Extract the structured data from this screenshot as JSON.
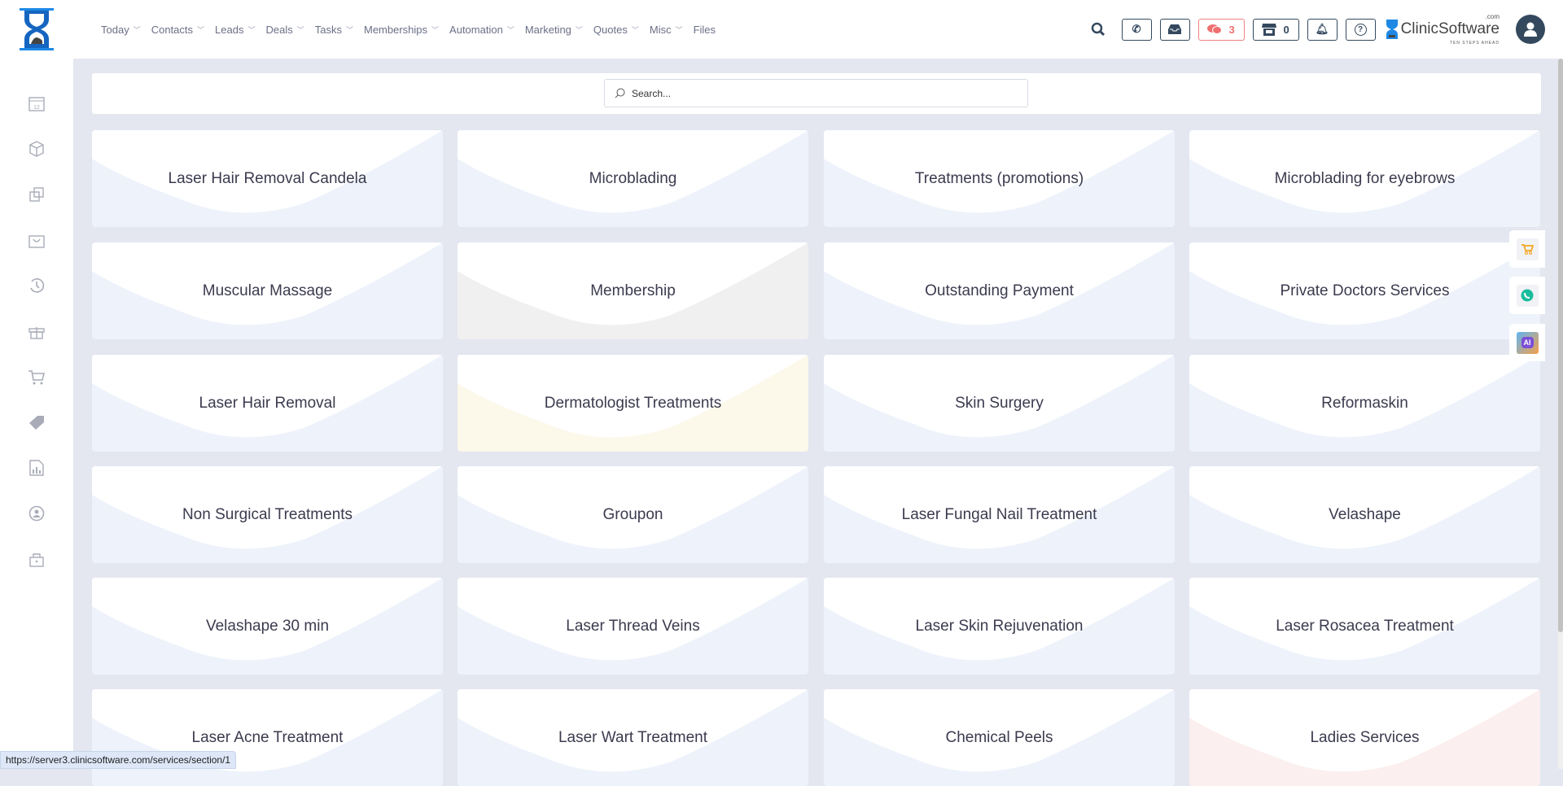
{
  "header": {
    "nav": [
      "Today",
      "Contacts",
      "Leads",
      "Deals",
      "Tasks",
      "Memberships",
      "Automation",
      "Marketing",
      "Quotes",
      "Misc",
      "Files"
    ],
    "messages_count": "3",
    "store_count": "0",
    "brand_name": "ClinicSoftware",
    "brand_suffix": ".com",
    "brand_tagline": "TEN STEPS AHEAD"
  },
  "sidebar": [
    "calendar-icon",
    "box-icon",
    "copy-icon",
    "basket-icon",
    "history-icon",
    "gift-icon",
    "cart-icon",
    "tag-icon",
    "report-icon",
    "user-circle-icon",
    "lock-icon"
  ],
  "search": {
    "placeholder": "Search..."
  },
  "cards": [
    {
      "label": "Laser Hair Removal Candela",
      "color": "#eef3fb"
    },
    {
      "label": "Microblading",
      "color": "#eef3fb"
    },
    {
      "label": "Treatments (promotions)",
      "color": "#eef3fb"
    },
    {
      "label": "Microblading for eyebrows",
      "color": "#eef3fb"
    },
    {
      "label": "Muscular Massage",
      "color": "#eef3fb"
    },
    {
      "label": "Membership",
      "color": "#f0f0f1"
    },
    {
      "label": "Outstanding Payment",
      "color": "#eef3fb"
    },
    {
      "label": "Private Doctors Services",
      "color": "#eef3fb"
    },
    {
      "label": "Laser Hair Removal",
      "color": "#eef3fb"
    },
    {
      "label": "Dermatologist Treatments",
      "color": "#fcf8ea"
    },
    {
      "label": "Skin Surgery",
      "color": "#eef3fb"
    },
    {
      "label": "Reformaskin",
      "color": "#eef3fb"
    },
    {
      "label": "Non Surgical Treatments",
      "color": "#eef3fb"
    },
    {
      "label": "Groupon",
      "color": "#eef3fb"
    },
    {
      "label": "Laser Fungal Nail Treatment",
      "color": "#eef3fb"
    },
    {
      "label": "Velashape",
      "color": "#eef3fb"
    },
    {
      "label": "Velashape 30 min",
      "color": "#eef3fb"
    },
    {
      "label": "Laser Thread Veins",
      "color": "#eef3fb"
    },
    {
      "label": "Laser Skin Rejuvenation",
      "color": "#eef3fb"
    },
    {
      "label": "Laser Rosacea Treatment",
      "color": "#eef3fb"
    },
    {
      "label": "Laser Acne Treatment",
      "color": "#eef3fb"
    },
    {
      "label": "Laser Wart Treatment",
      "color": "#eef3fb"
    },
    {
      "label": "Chemical Peels",
      "color": "#eef3fb"
    },
    {
      "label": "Ladies Services",
      "color": "#fcefef"
    }
  ],
  "floating": [
    "cart-icon",
    "whatsapp-icon",
    "ai-icon"
  ],
  "status_url": "https://server3.clinicsoftware.com/services/section/1"
}
